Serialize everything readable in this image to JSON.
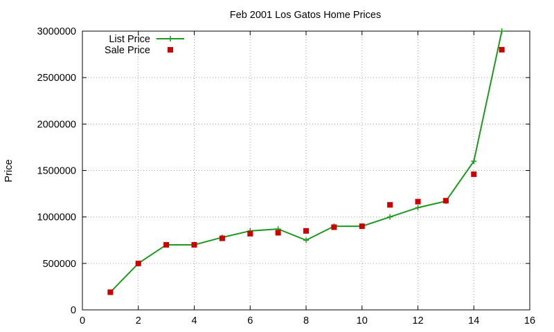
{
  "chart_data": {
    "type": "line",
    "title": "Feb 2001 Los Gatos Home Prices",
    "xlabel": "",
    "ylabel": "Price",
    "xlim": [
      0,
      16
    ],
    "ylim": [
      0,
      3000000
    ],
    "x_ticks": [
      0,
      2,
      4,
      6,
      8,
      10,
      12,
      14,
      16
    ],
    "y_ticks": [
      0,
      500000,
      1000000,
      1500000,
      2000000,
      2500000,
      3000000
    ],
    "grid": true,
    "legend_position": "top-left",
    "series": [
      {
        "name": "List Price",
        "style": "line-with-plus-markers",
        "color": "#1a9a1a",
        "x": [
          1,
          2,
          3,
          4,
          5,
          6,
          7,
          8,
          9,
          10,
          11,
          12,
          13,
          14,
          15
        ],
        "values": [
          190000,
          500000,
          700000,
          700000,
          780000,
          850000,
          870000,
          750000,
          900000,
          900000,
          1000000,
          1100000,
          1170000,
          1600000,
          3000000
        ]
      },
      {
        "name": "Sale Price",
        "style": "square-points",
        "color": "#cc0000",
        "x": [
          1,
          2,
          3,
          4,
          5,
          6,
          7,
          8,
          9,
          10,
          11,
          12,
          13,
          14,
          15
        ],
        "values": [
          190000,
          500000,
          700000,
          700000,
          770000,
          820000,
          830000,
          850000,
          890000,
          900000,
          1130000,
          1165000,
          1175000,
          1460000,
          2800000
        ]
      }
    ]
  }
}
